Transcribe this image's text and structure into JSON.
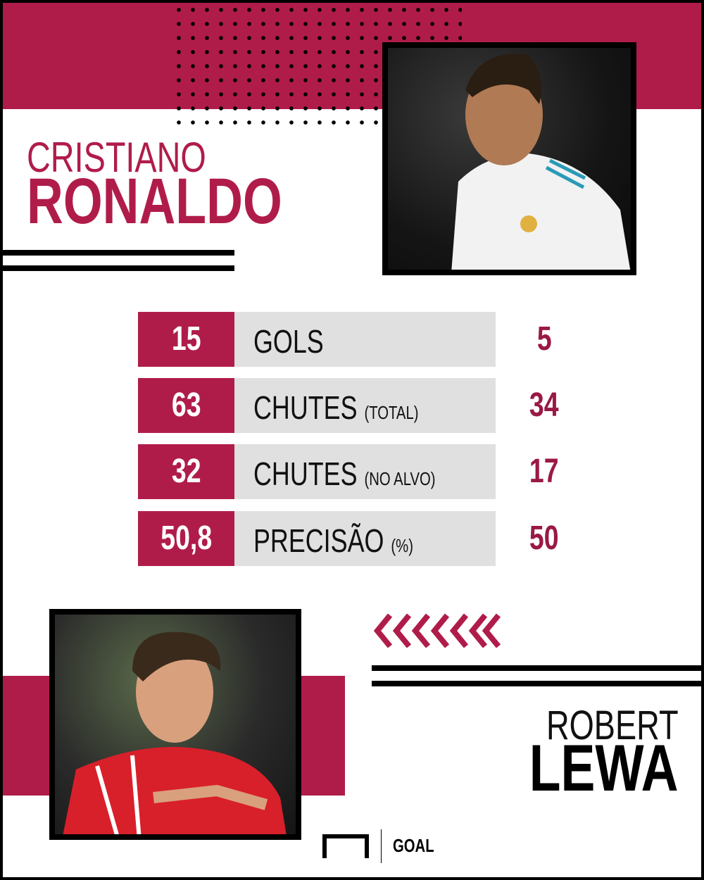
{
  "colors": {
    "accent": "#b01c4a",
    "text_dark": "#000000",
    "row_bg": "#e0e0e0"
  },
  "player1": {
    "first_name": "CRISTIANO",
    "last_name": "RONALDO",
    "photo": "cristiano-ronaldo-photo"
  },
  "player2": {
    "first_name": "ROBERT",
    "last_name": "LEWA",
    "photo": "robert-lewandowski-photo"
  },
  "stats": [
    {
      "left": "15",
      "label": "GOLS",
      "qualifier": "",
      "right": "5"
    },
    {
      "left": "63",
      "label": "CHUTES",
      "qualifier": "(TOTAL)",
      "right": "34"
    },
    {
      "left": "32",
      "label": "CHUTES",
      "qualifier": "(NO ALVO)",
      "right": "17"
    },
    {
      "left": "50,8",
      "label": "PRECISÃO",
      "qualifier": "(%)",
      "right": "50"
    }
  ],
  "decor": {
    "chevrons": 7,
    "chevron_icon": "chevron-left-icon"
  },
  "brand": {
    "name": "GOAL",
    "logo_icon": "goal-frame-icon"
  }
}
